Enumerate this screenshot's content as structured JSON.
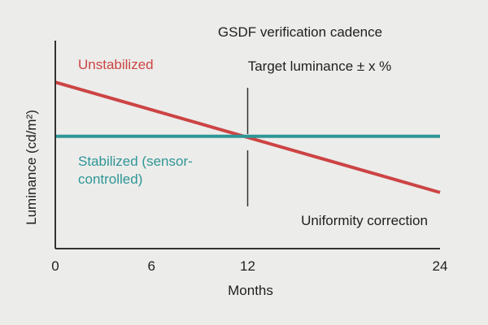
{
  "chart_data": {
    "type": "line",
    "title": "",
    "xlabel": "Months",
    "ylabel": "Luminance (cd/m²)",
    "x_ticks": [
      0,
      6,
      12,
      24
    ],
    "xlim": [
      0,
      24
    ],
    "y_ticks": [],
    "ylim": [
      0,
      1
    ],
    "grid": false,
    "series": [
      {
        "name": "Unstabilized",
        "x": [
          0,
          24
        ],
        "y": [
          0.8,
          0.27
        ],
        "color": "#cc4444"
      },
      {
        "name": "Stabilized (sensor-controlled)",
        "x": [
          0,
          24
        ],
        "y": [
          0.54,
          0.54
        ],
        "color": "#2e9696"
      }
    ],
    "series_labels": {
      "unstabilized": "Unstabilized",
      "stabilized_line1": "Stabilized (sensor-",
      "stabilized_line2": "controlled)"
    },
    "marker": {
      "x": 12,
      "line_color": "#333333"
    },
    "annotations": {
      "cadence": "GSDF verification cadence",
      "target": "Target luminance ± x %",
      "uniformity": "Uniformity correction"
    },
    "colors": {
      "background": "#ececea",
      "axis": "#333333",
      "text": "#1f1f1f"
    }
  }
}
